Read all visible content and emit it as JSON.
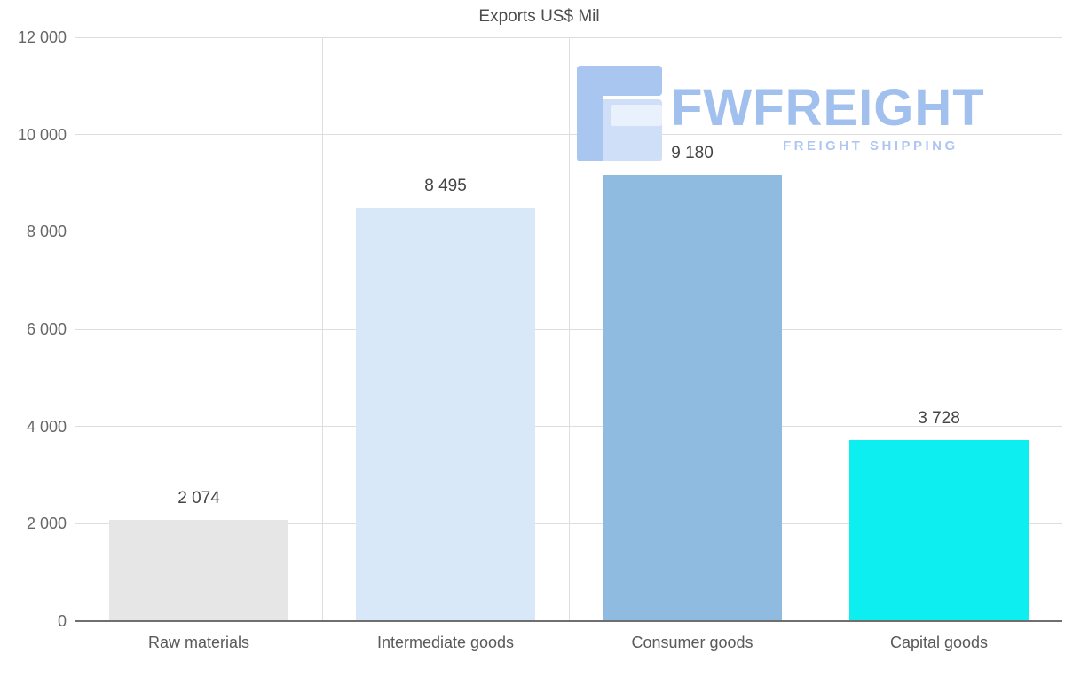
{
  "chart_data": {
    "type": "bar",
    "title": "Exports US$ Mil",
    "categories": [
      "Raw materials",
      "Intermediate goods",
      "Consumer goods",
      "Capital goods"
    ],
    "values": [
      2074,
      8495,
      9180,
      3728
    ],
    "value_labels": [
      "2 074",
      "8 495",
      "9 180",
      "3 728"
    ],
    "bar_colors": [
      "#e6e6e6",
      "#d9e8f9",
      "#8fbbe0",
      "#0ceef0"
    ],
    "xlabel": "",
    "ylabel": "",
    "ylim": [
      0,
      12000
    ],
    "ytick_values": [
      0,
      2000,
      4000,
      6000,
      8000,
      10000,
      12000
    ],
    "ytick_labels": [
      "0",
      "2 000",
      "4 000",
      "6 000",
      "8 000",
      "10 000",
      "12 000"
    ],
    "grid": true,
    "legend": "none"
  },
  "watermark": {
    "logo_icon": "fwfreight-logo",
    "brand": "FWFREIGHT",
    "tagline": "FREIGHT SHIPPING",
    "brand_color": "#a2c0ed"
  }
}
